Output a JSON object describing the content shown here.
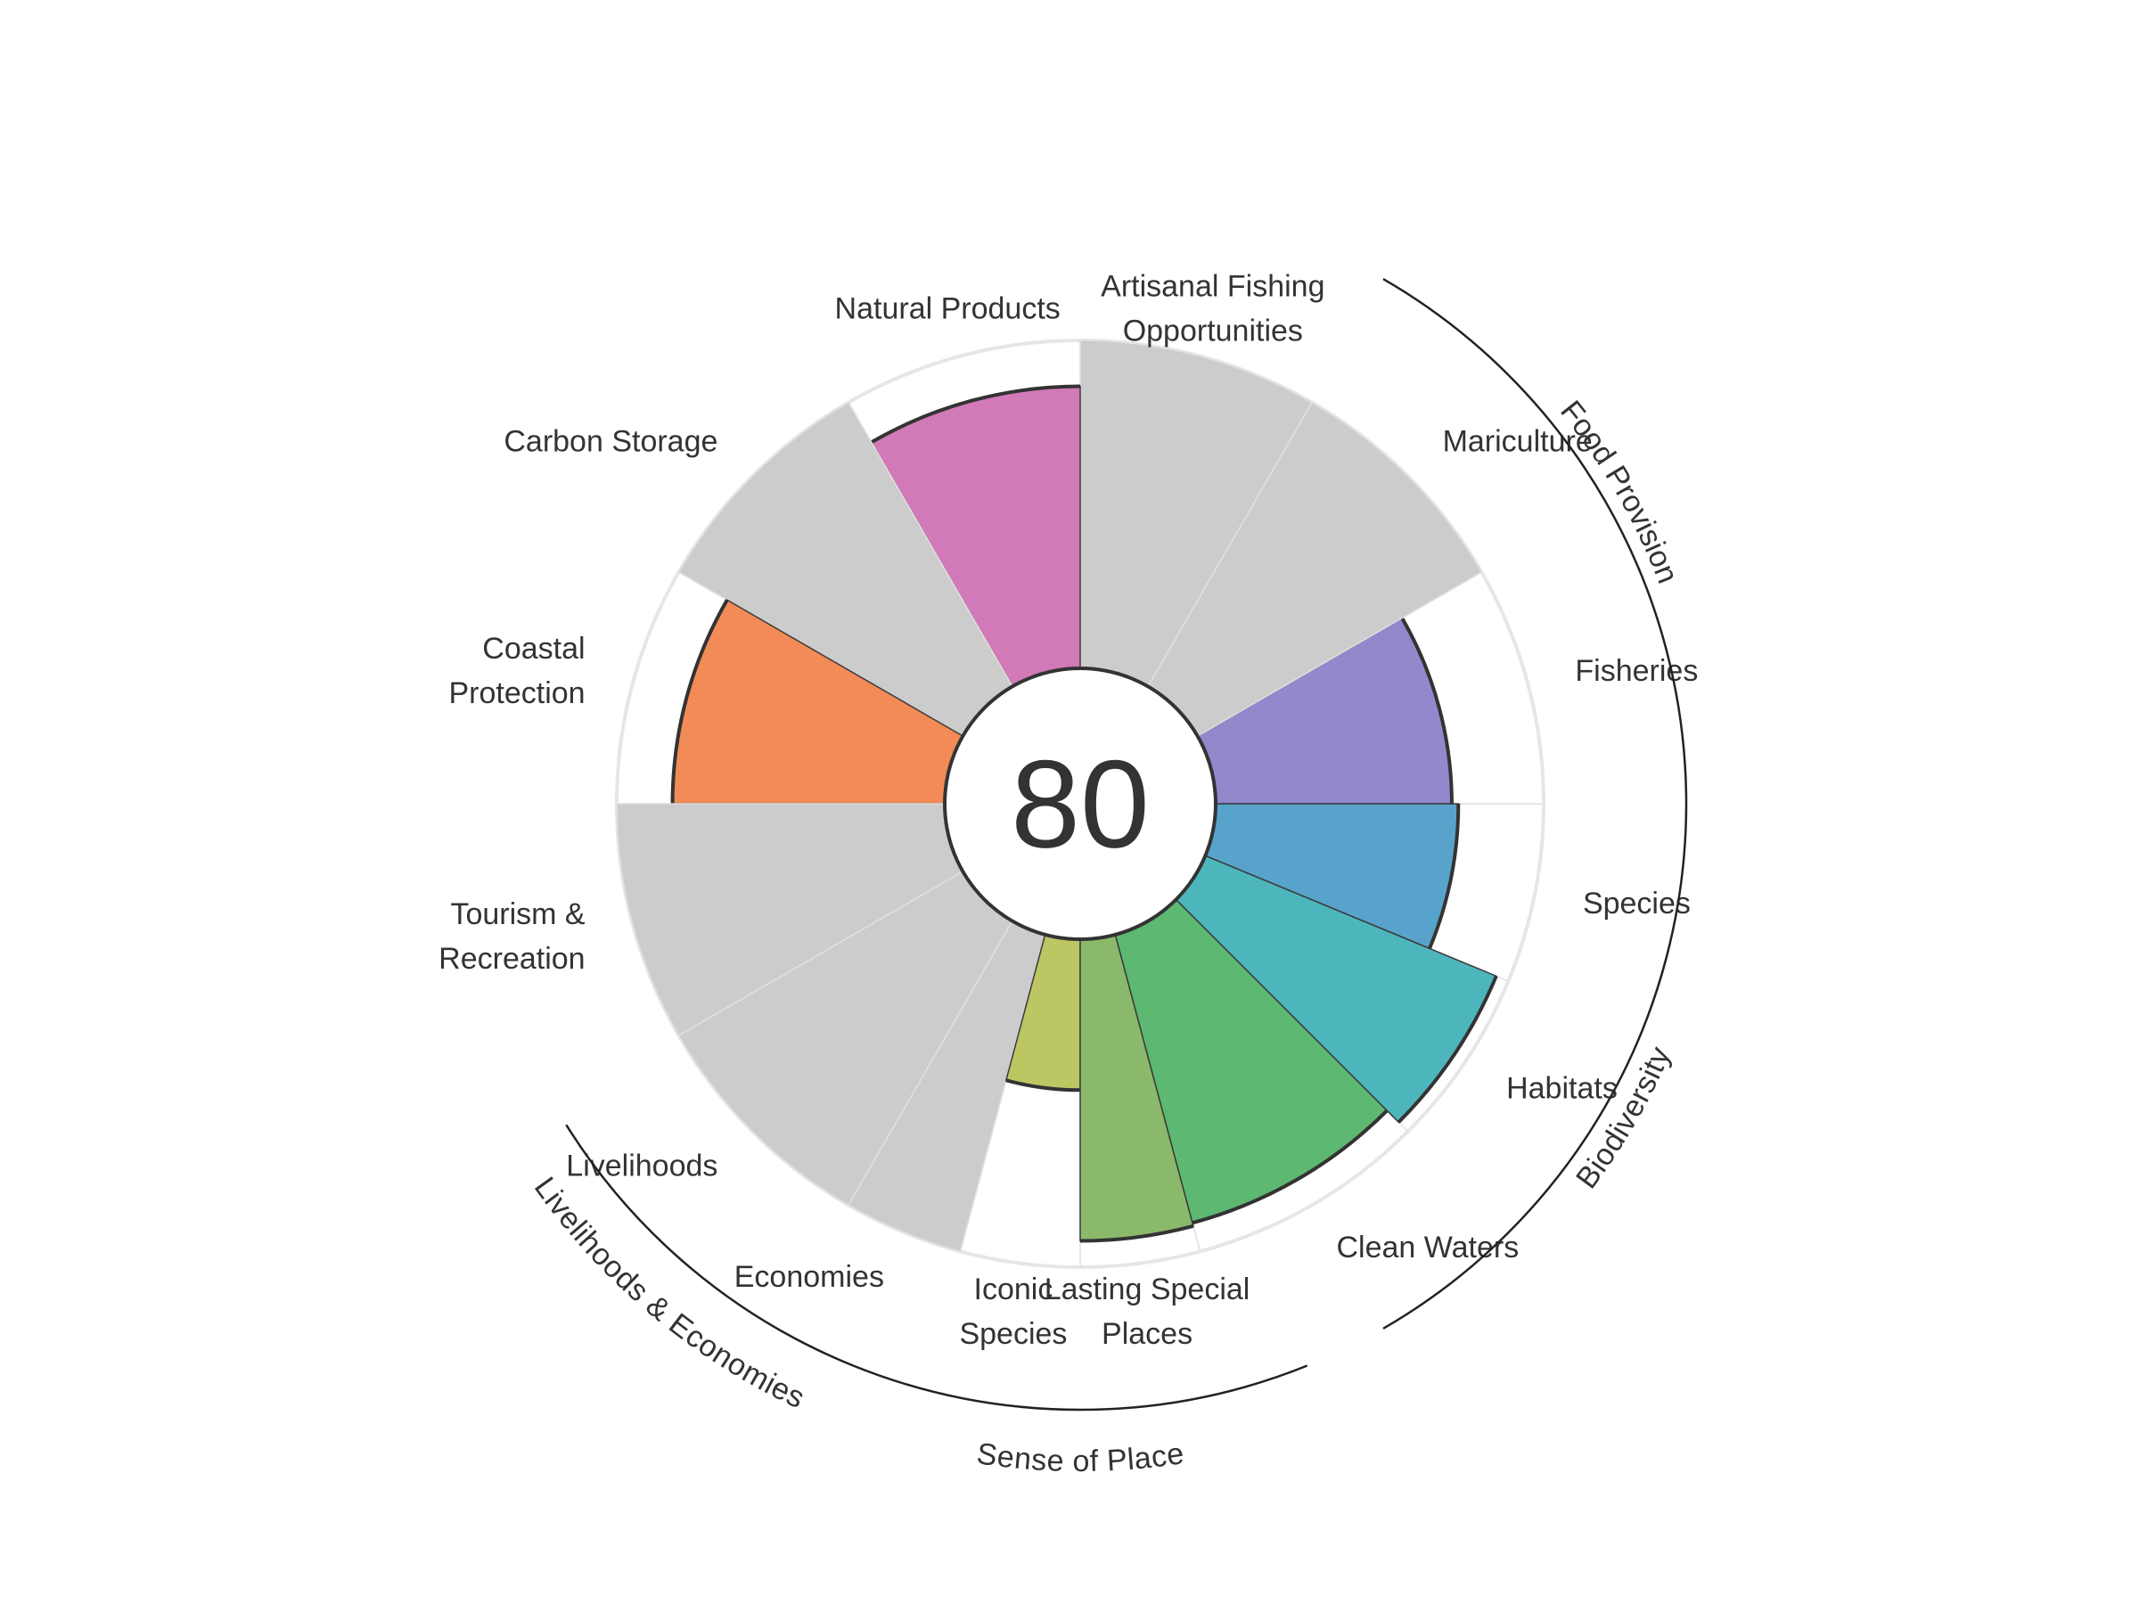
{
  "chart_data": {
    "type": "polar-bar",
    "center_score": "80",
    "rmax": 100,
    "petals": [
      {
        "key": "fisheries",
        "label": [
          "Fisheries"
        ],
        "value": 72,
        "color": "#9189CC",
        "start": 90,
        "end": 60,
        "weight": 1
      },
      {
        "key": "mariculture",
        "label": [
          "Mariculture"
        ],
        "value": null,
        "color": "#CCCCCC",
        "start": 60,
        "end": 30,
        "weight": 1
      },
      {
        "key": "artisanal_fishing",
        "label": [
          "Artisanal Fishing",
          "Opportunities"
        ],
        "value": null,
        "color": "#CCCCCC",
        "start": 30,
        "end": 0,
        "weight": 1
      },
      {
        "key": "natural_products",
        "label": [
          "Natural Products"
        ],
        "value": 86,
        "color": "#D279B8",
        "start": 0,
        "end": -30,
        "weight": 1
      },
      {
        "key": "carbon_storage",
        "label": [
          "Carbon Storage"
        ],
        "value": null,
        "color": "#CCCCCC",
        "start": -30,
        "end": -60,
        "weight": 1
      },
      {
        "key": "coastal_protection",
        "label": [
          "Coastal",
          "Protection"
        ],
        "value": 83,
        "color": "#F28B57",
        "start": -60,
        "end": -90,
        "weight": 1
      },
      {
        "key": "tourism",
        "label": [
          "Tourism &",
          "Recreation"
        ],
        "value": null,
        "color": "#CCCCCC",
        "start": -90,
        "end": -120,
        "weight": 1
      },
      {
        "key": "livelihoods",
        "label": [
          "Livelihoods"
        ],
        "value": null,
        "color": "#CCCCCC",
        "start": -120,
        "end": -150,
        "weight": 1
      },
      {
        "key": "economies",
        "label": [
          "Economies"
        ],
        "value": null,
        "color": "#CCCCCC",
        "start": -150,
        "end": -165,
        "weight": 0.5
      },
      {
        "key": "iconic_species",
        "label": [
          "Iconic",
          "Species"
        ],
        "value": 46,
        "color": "#BCC663",
        "start": -165,
        "end": -180,
        "weight": 0.5
      },
      {
        "key": "lasting_special_places",
        "label": [
          "Lasting Special",
          "Places"
        ],
        "value": 92,
        "color": "#8BB96B",
        "start": 180,
        "end": 165,
        "weight": 0.5
      },
      {
        "key": "clean_waters",
        "label": [
          "Clean Waters"
        ],
        "value": 91,
        "color": "#5DB872",
        "start": 165,
        "end": 135,
        "weight": 1
      },
      {
        "key": "habitats",
        "label": [
          "Habitats"
        ],
        "value": 96,
        "color": "#4DB6BC",
        "start": 135,
        "end": 112.5,
        "weight": 0.75
      },
      {
        "key": "species",
        "label": [
          "Species"
        ],
        "value": 74,
        "color": "#58A3CB",
        "start": 112.5,
        "end": 90,
        "weight": 0.75
      }
    ],
    "groups": [
      {
        "label": "Food Provision"
      },
      {
        "label": "Biodiversity"
      },
      {
        "label": "Sense of Place"
      },
      {
        "label": "Livelihoods & Economies"
      }
    ]
  }
}
